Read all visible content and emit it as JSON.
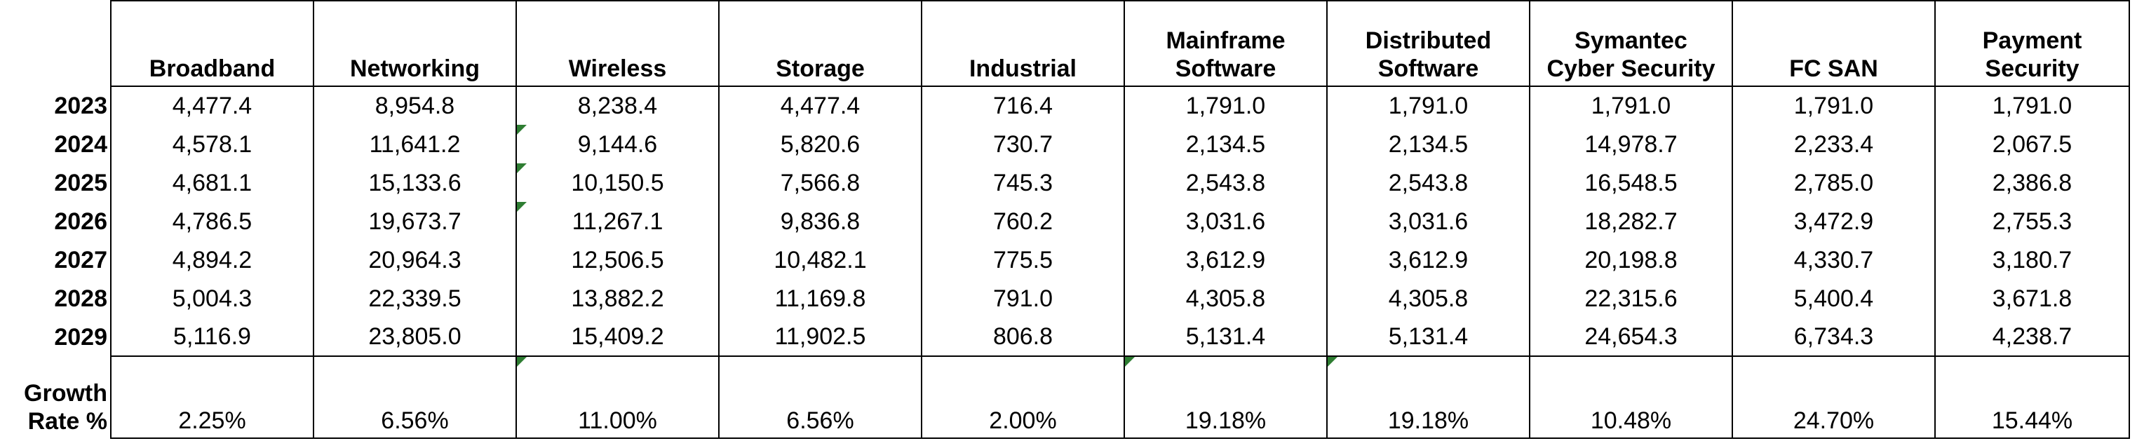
{
  "columns": [
    {
      "lines": [
        "",
        "Broadband"
      ]
    },
    {
      "lines": [
        "",
        "Networking"
      ]
    },
    {
      "lines": [
        "",
        "Wireless"
      ]
    },
    {
      "lines": [
        "",
        "Storage"
      ]
    },
    {
      "lines": [
        "",
        "Industrial"
      ]
    },
    {
      "lines": [
        "Mainframe",
        "Software"
      ]
    },
    {
      "lines": [
        "Distributed",
        "Software"
      ]
    },
    {
      "lines": [
        "Symantec",
        "Cyber Security"
      ]
    },
    {
      "lines": [
        "",
        "FC SAN"
      ]
    },
    {
      "lines": [
        "Payment",
        "Security"
      ]
    }
  ],
  "rows": [
    {
      "year": "2023",
      "values": [
        "4,477.4",
        "8,954.8",
        "8,238.4",
        "4,477.4",
        "716.4",
        "1,791.0",
        "1,791.0",
        "1,791.0",
        "1,791.0",
        "1,791.0"
      ]
    },
    {
      "year": "2024",
      "values": [
        "4,578.1",
        "11,641.2",
        "9,144.6",
        "5,820.6",
        "730.7",
        "2,134.5",
        "2,134.5",
        "14,978.7",
        "2,233.4",
        "2,067.5"
      ]
    },
    {
      "year": "2025",
      "values": [
        "4,681.1",
        "15,133.6",
        "10,150.5",
        "7,566.8",
        "745.3",
        "2,543.8",
        "2,543.8",
        "16,548.5",
        "2,785.0",
        "2,386.8"
      ]
    },
    {
      "year": "2026",
      "values": [
        "4,786.5",
        "19,673.7",
        "11,267.1",
        "9,836.8",
        "760.2",
        "3,031.6",
        "3,031.6",
        "18,282.7",
        "3,472.9",
        "2,755.3"
      ]
    },
    {
      "year": "2027",
      "values": [
        "4,894.2",
        "20,964.3",
        "12,506.5",
        "10,482.1",
        "775.5",
        "3,612.9",
        "3,612.9",
        "20,198.8",
        "4,330.7",
        "3,180.7"
      ]
    },
    {
      "year": "2028",
      "values": [
        "5,004.3",
        "22,339.5",
        "13,882.2",
        "11,169.8",
        "791.0",
        "4,305.8",
        "4,305.8",
        "22,315.6",
        "5,400.4",
        "3,671.8"
      ]
    },
    {
      "year": "2029",
      "values": [
        "5,116.9",
        "23,805.0",
        "15,409.2",
        "11,902.5",
        "806.8",
        "5,131.4",
        "5,131.4",
        "24,654.3",
        "6,734.3",
        "4,238.7"
      ]
    }
  ],
  "growth": {
    "label_lines": [
      "Growth",
      "Rate %"
    ],
    "values": [
      "2.25%",
      "6.56%",
      "11.00%",
      "6.56%",
      "2.00%",
      "19.18%",
      "19.18%",
      "10.48%",
      "24.70%",
      "15.44%"
    ]
  },
  "colors": {
    "grid": "#000000",
    "error_flag": "#2e7d32"
  }
}
